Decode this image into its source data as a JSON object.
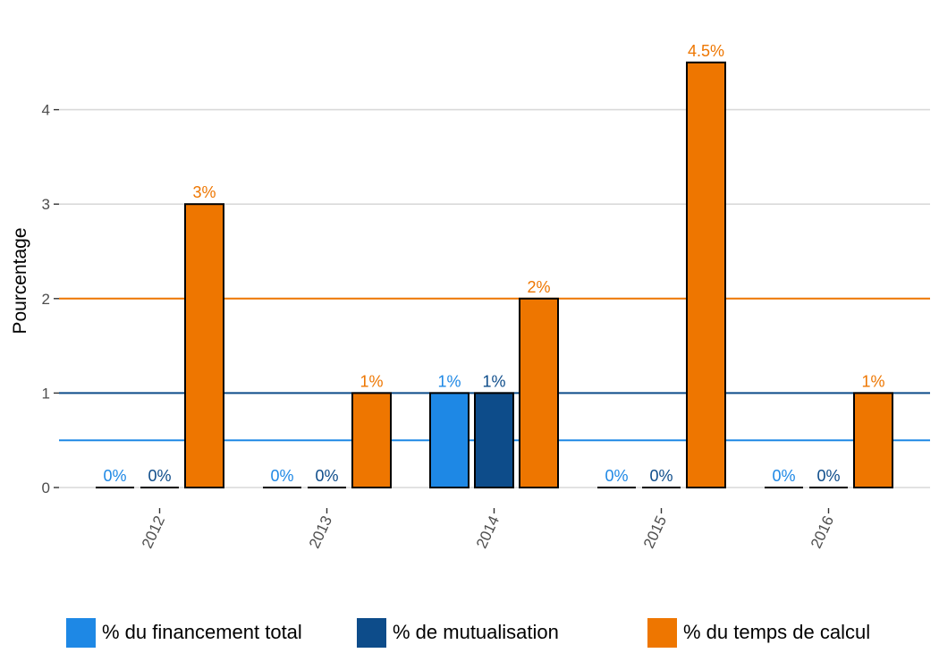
{
  "chart_data": {
    "type": "bar",
    "categories": [
      "2012",
      "2013",
      "2014",
      "2015",
      "2016"
    ],
    "series": [
      {
        "name": "% du financement total",
        "color": "#1e88e5",
        "values": [
          0,
          0,
          1,
          0,
          0
        ],
        "labels": [
          "0%",
          "0%",
          "1%",
          "0%",
          "0%"
        ]
      },
      {
        "name": "% de mutualisation",
        "color": "#0d4c8a",
        "values": [
          0,
          0,
          1,
          0,
          0
        ],
        "labels": [
          "0%",
          "0%",
          "1%",
          "0%",
          "0%"
        ]
      },
      {
        "name": "% du temps de calcul",
        "color": "#ee7600",
        "values": [
          3,
          1,
          2,
          4.5,
          1
        ],
        "labels": [
          "3%",
          "1%",
          "2%",
          "4.5%",
          "1%"
        ]
      }
    ],
    "reference_lines": [
      {
        "value": 0.5,
        "color": "#1e88e5"
      },
      {
        "value": 1,
        "color": "#0d4c8a"
      },
      {
        "value": 2,
        "color": "#ee7600"
      }
    ],
    "title": "",
    "xlabel": "",
    "ylabel": "Pourcentage",
    "yticks": [
      "0",
      "1",
      "2",
      "3",
      "4"
    ],
    "ylim": [
      -0.15,
      4.77
    ],
    "grid": "horizontal",
    "legend_position": "bottom"
  }
}
